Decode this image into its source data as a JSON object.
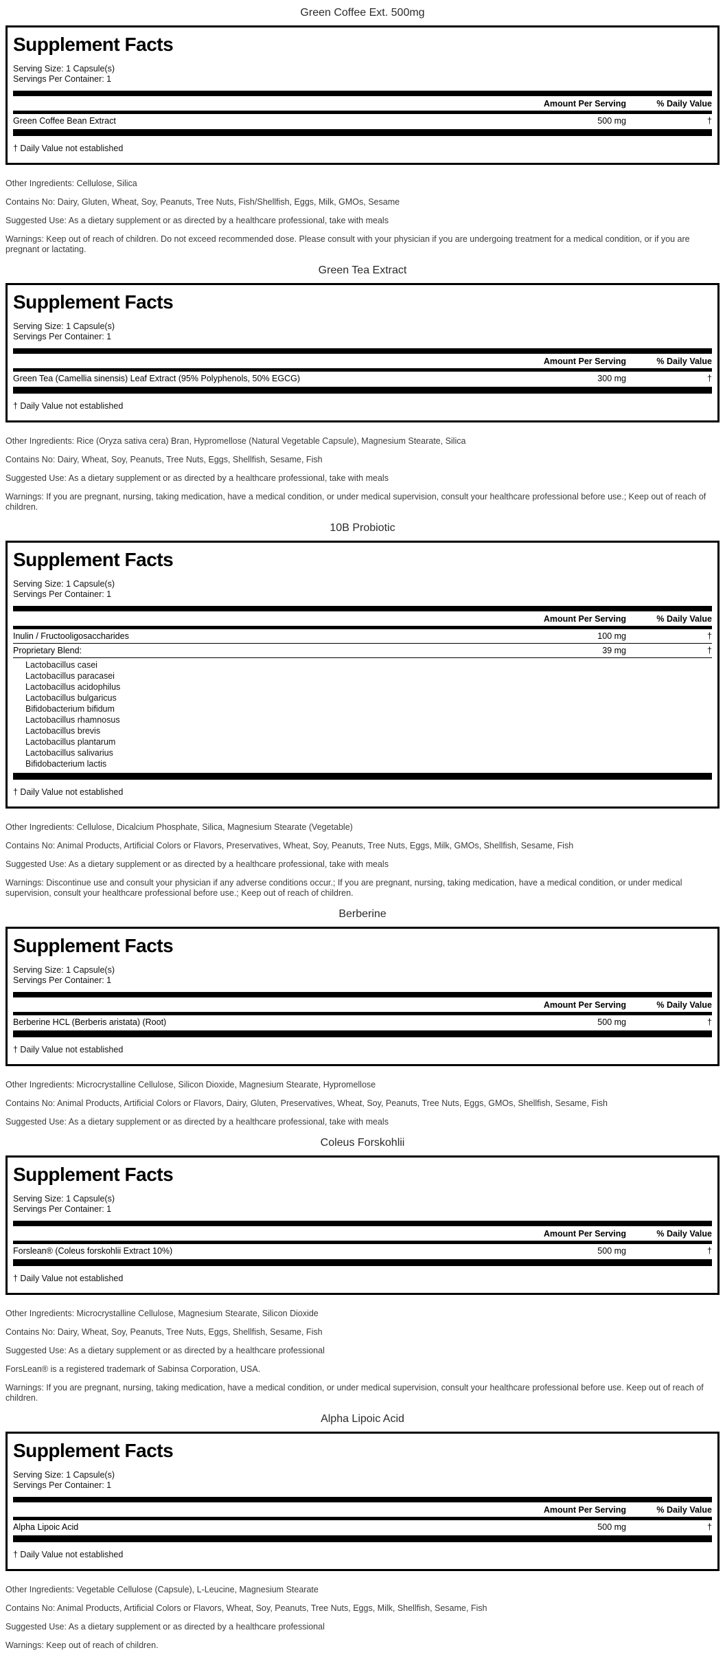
{
  "facts_common": {
    "heading": "Supplement Facts",
    "serving_size": "Serving Size: 1 Capsule(s)",
    "servings_per_container": "Servings Per Container: 1",
    "amount_header": "Amount Per Serving",
    "dv_header": "% Daily Value",
    "footnote": "† Daily Value not established"
  },
  "sections": [
    {
      "title": "Green Coffee Ext. 500mg",
      "rows": [
        {
          "name": "Green Coffee Bean Extract",
          "amount": "500 mg",
          "dv": "†",
          "sub": []
        }
      ],
      "paragraphs": [
        "Other Ingredients: Cellulose, Silica",
        "Contains No: Dairy, Gluten, Wheat, Soy, Peanuts, Tree Nuts, Fish/Shellfish, Eggs, Milk, GMOs, Sesame",
        "Suggested Use: As a dietary supplement or as directed by a healthcare professional, take with meals",
        "Warnings: Keep out of reach of children. Do not exceed recommended dose. Please consult with your physician if you are undergoing treatment for a medical condition, or if you are pregnant or lactating."
      ]
    },
    {
      "title": "Green Tea Extract",
      "rows": [
        {
          "name": "Green Tea (Camellia sinensis) Leaf Extract (95% Polyphenols, 50% EGCG)",
          "amount": "300 mg",
          "dv": "†",
          "sub": []
        }
      ],
      "paragraphs": [
        "Other Ingredients: Rice (Oryza sativa cera) Bran, Hypromellose (Natural Vegetable Capsule), Magnesium Stearate, Silica",
        "Contains No: Dairy, Wheat, Soy, Peanuts, Tree Nuts, Eggs, Shellfish, Sesame, Fish",
        "Suggested Use: As a dietary supplement or as directed by a healthcare professional, take with meals",
        "Warnings: If you are pregnant, nursing, taking medication, have a medical condition, or under medical supervision, consult your healthcare professional before use.; Keep out of reach of children."
      ]
    },
    {
      "title": "10B Probiotic",
      "rows": [
        {
          "name": "Inulin / Fructooligosaccharides",
          "amount": "100 mg",
          "dv": "†",
          "sub": []
        },
        {
          "name": "Proprietary Blend:",
          "amount": "39 mg",
          "dv": "†",
          "sub": [
            "Lactobacillus casei",
            "Lactobacillus paracasei",
            "Lactobacillus acidophilus",
            "Lactobacillus bulgaricus",
            "Bifidobacterium bifidum",
            "Lactobacillus rhamnosus",
            "Lactobacillus brevis",
            "Lactobacillus plantarum",
            "Lactobacillus salivarius",
            "Bifidobacterium lactis"
          ]
        }
      ],
      "paragraphs": [
        "Other Ingredients: Cellulose, Dicalcium Phosphate, Silica, Magnesium Stearate (Vegetable)",
        "Contains No: Animal Products, Artificial Colors or Flavors, Preservatives, Wheat, Soy, Peanuts, Tree Nuts, Eggs, Milk, GMOs, Shellfish, Sesame, Fish",
        "Suggested Use: As a dietary supplement or as directed by a healthcare professional, take with meals",
        "Warnings: Discontinue use and consult your physician if any adverse conditions occur.; If you are pregnant, nursing, taking medication, have a medical condition, or under medical supervision, consult your healthcare professional before use.; Keep out of reach of children."
      ]
    },
    {
      "title": "Berberine",
      "rows": [
        {
          "name": "Berberine HCL (Berberis aristata) (Root)",
          "amount": "500 mg",
          "dv": "†",
          "sub": []
        }
      ],
      "paragraphs": [
        "Other Ingredients: Microcrystalline Cellulose, Silicon Dioxide, Magnesium Stearate, Hypromellose",
        "Contains No: Animal Products, Artificial Colors or Flavors, Dairy, Gluten, Preservatives, Wheat, Soy, Peanuts, Tree Nuts, Eggs, GMOs, Shellfish, Sesame, Fish",
        "Suggested Use: As a dietary supplement or as directed by a healthcare professional, take with meals"
      ]
    },
    {
      "title": "Coleus Forskohlii",
      "rows": [
        {
          "name": "Forslean® (Coleus forskohlii Extract 10%)",
          "amount": "500 mg",
          "dv": "†",
          "sub": []
        }
      ],
      "paragraphs": [
        "Other Ingredients: Microcrystalline Cellulose, Magnesium Stearate, Silicon Dioxide",
        "Contains No: Dairy, Wheat, Soy, Peanuts, Tree Nuts, Eggs, Shellfish, Sesame, Fish",
        "Suggested Use: As a dietary supplement or as directed by a healthcare professional",
        "ForsLean® is a registered trademark of Sabinsa Corporation, USA.",
        "Warnings: If you are pregnant, nursing, taking medication, have a medical condition, or under medical supervision, consult your healthcare professional before use. Keep out of reach of children."
      ]
    },
    {
      "title": "Alpha Lipoic Acid",
      "rows": [
        {
          "name": "Alpha Lipoic Acid",
          "amount": "500 mg",
          "dv": "†",
          "sub": []
        }
      ],
      "paragraphs": [
        "Other Ingredients: Vegetable Cellulose (Capsule), L-Leucine, Magnesium Stearate",
        "Contains No: Animal Products, Artificial Colors or Flavors, Wheat, Soy, Peanuts, Tree Nuts, Eggs, Milk, Shellfish, Sesame, Fish",
        "Suggested Use: As a dietary supplement or as directed by a healthcare professional",
        "Warnings: Keep out of reach of children."
      ]
    }
  ]
}
